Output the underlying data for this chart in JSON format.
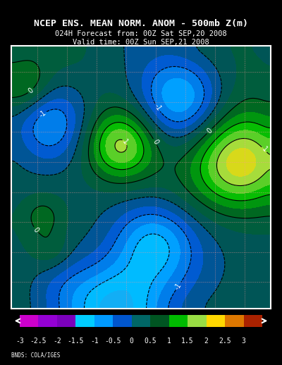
{
  "title_line1": "NCEP ENS. MEAN NORM. ANOM - 500mb Z(m)",
  "title_line2": "024H Forecast from: 00Z Sat SEP,20 2008",
  "title_line3": "Valid time: 00Z Sun SEP,21 2008",
  "colorbar_label": "BNDS: COLA/IGES",
  "background_color": "#000000",
  "map_bg_color": "#1a5c3a",
  "colorbar_levels": [
    -3,
    -2.5,
    -2,
    -1.5,
    -1,
    -0.5,
    0,
    0.5,
    1,
    1.5,
    2,
    2.5,
    3
  ],
  "colorbar_colors": [
    "#9400D3",
    "#8B00FF",
    "#4B0082",
    "#00BFFF",
    "#1E90FF",
    "#0000CD",
    "#008080",
    "#006400",
    "#00C800",
    "#90EE90",
    "#FFD700",
    "#FF8C00",
    "#8B0000"
  ],
  "contour_colors_map": {
    "-3": "#9400D3",
    "-2.5": "#8B00FF",
    "-2": "#4B0082",
    "-1.5": "#00BFFF",
    "-1": "#1E90FF",
    "-0.5": "#0000CD",
    "0": "#008080",
    "0.5": "#006400",
    "1": "#00C800",
    "1.5": "#90EE90",
    "2": "#FFD700",
    "2.5": "#FF8C00",
    "3": "#8B0000"
  }
}
